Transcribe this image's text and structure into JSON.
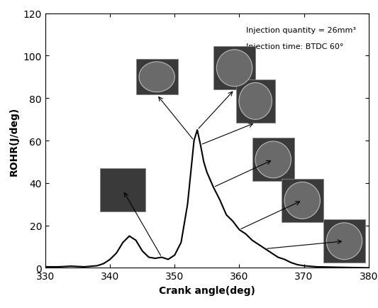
{
  "chart_data": {
    "type": "line",
    "xlabel": "Crank angle(deg)",
    "ylabel": "ROHR(J/deg)",
    "annotations": [
      "Injection quantity = 26mm³",
      "Injection time: BTDC 60°"
    ],
    "x": [
      330,
      332,
      334,
      336,
      338,
      339,
      340,
      341,
      342,
      343,
      344,
      345,
      346,
      347,
      348,
      349,
      350,
      351,
      352,
      352.5,
      353,
      353.5,
      354,
      354.5,
      355,
      356,
      357,
      358,
      359,
      360,
      361,
      362,
      363,
      364,
      365,
      366,
      367,
      368,
      369,
      370,
      372,
      375,
      380
    ],
    "values": [
      0.5,
      0.5,
      0.8,
      0.5,
      1,
      2,
      4,
      7,
      12,
      15,
      13,
      8,
      5,
      4.5,
      5,
      4,
      6,
      12,
      30,
      45,
      60,
      65,
      58,
      50,
      45,
      38,
      32,
      25,
      22,
      18,
      16,
      13,
      11,
      9,
      7,
      5,
      4,
      2.5,
      1.5,
      1,
      0.5,
      0.3,
      0
    ],
    "color": "#000000",
    "xlim": [
      330,
      380
    ],
    "xticks": [
      330,
      340,
      350,
      360,
      370,
      380
    ],
    "ylim": [
      0,
      120
    ],
    "yticks": [
      0,
      20,
      40,
      60,
      80,
      100,
      120
    ],
    "grid": false
  }
}
